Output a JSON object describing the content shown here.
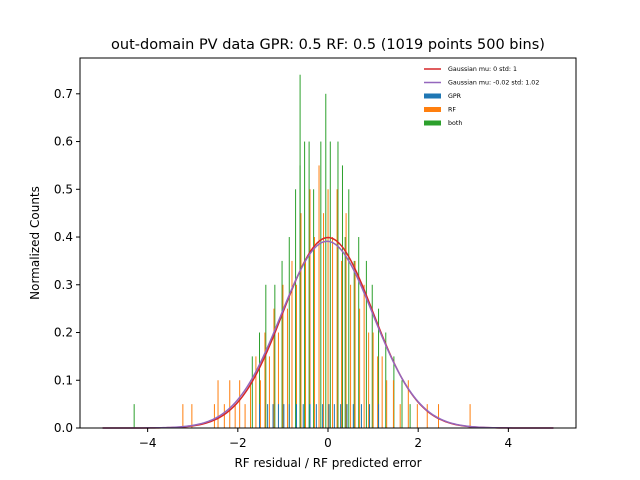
{
  "chart_data": {
    "type": "histogram",
    "title": "out-domain PV data GPR: 0.5 RF: 0.5 (1019 points 500 bins)",
    "xlabel": "RF residual / RF predicted error",
    "ylabel": "Normalized Counts",
    "xlim": [
      -5.5,
      5.5
    ],
    "ylim": [
      0,
      0.775
    ],
    "xticks": [
      -4,
      -2,
      0,
      2,
      4
    ],
    "yticks": [
      0.0,
      0.1,
      0.2,
      0.3,
      0.4,
      0.5,
      0.6,
      0.7
    ],
    "ytick_labels": [
      "0.0",
      "0.1",
      "0.2",
      "0.3",
      "0.4",
      "0.5",
      "0.6",
      "0.7"
    ],
    "legend_position": "top-right",
    "series": [
      {
        "name": "Gaussian mu: 0 std: 1",
        "kind": "line",
        "color": "#d62728",
        "mu": 0,
        "std": 1,
        "x_range": [
          -5,
          5
        ]
      },
      {
        "name": "Gaussian mu: -0.02 std: 1.02",
        "kind": "line",
        "color": "#9467bd",
        "mu": -0.02,
        "std": 1.02,
        "x_range": [
          -5,
          5
        ]
      },
      {
        "name": "GPR",
        "kind": "hist",
        "color": "#1f77b4",
        "bins": [
          [
            -1.52,
            0.05
          ],
          [
            -1.34,
            0.05
          ],
          [
            -1.22,
            0.05
          ],
          [
            -1.1,
            0.05
          ],
          [
            -0.98,
            0.05
          ],
          [
            -0.86,
            0.05
          ],
          [
            -0.7,
            0.05
          ],
          [
            -0.55,
            0.05
          ],
          [
            -0.4,
            0.05
          ],
          [
            -0.26,
            0.05
          ],
          [
            -0.12,
            0.05
          ],
          [
            0.02,
            0.05
          ],
          [
            0.14,
            0.05
          ],
          [
            0.28,
            0.05
          ],
          [
            0.42,
            0.05
          ],
          [
            0.56,
            0.05
          ],
          [
            0.74,
            0.05
          ],
          [
            0.92,
            0.05
          ],
          [
            1.12,
            0.05
          ]
        ]
      },
      {
        "name": "RF",
        "kind": "hist",
        "color": "#ff7f0e",
        "bins": [
          [
            -3.22,
            0.05
          ],
          [
            -3.02,
            0.05
          ],
          [
            -2.52,
            0.05
          ],
          [
            -2.44,
            0.1
          ],
          [
            -2.3,
            0.05
          ],
          [
            -2.18,
            0.1
          ],
          [
            -2.06,
            0.05
          ],
          [
            -1.96,
            0.1
          ],
          [
            -1.84,
            0.05
          ],
          [
            -1.72,
            0.1
          ],
          [
            -1.6,
            0.15
          ],
          [
            -1.5,
            0.1
          ],
          [
            -1.4,
            0.2
          ],
          [
            -1.3,
            0.15
          ],
          [
            -1.2,
            0.25
          ],
          [
            -1.1,
            0.2
          ],
          [
            -1.0,
            0.3
          ],
          [
            -0.9,
            0.25
          ],
          [
            -0.8,
            0.35
          ],
          [
            -0.7,
            0.3
          ],
          [
            -0.6,
            0.45
          ],
          [
            -0.5,
            0.35
          ],
          [
            -0.4,
            0.5
          ],
          [
            -0.3,
            0.4
          ],
          [
            -0.2,
            0.55
          ],
          [
            -0.1,
            0.45
          ],
          [
            0.0,
            0.5
          ],
          [
            0.1,
            0.4
          ],
          [
            0.2,
            0.5
          ],
          [
            0.3,
            0.35
          ],
          [
            0.4,
            0.45
          ],
          [
            0.5,
            0.3
          ],
          [
            0.6,
            0.35
          ],
          [
            0.7,
            0.25
          ],
          [
            0.8,
            0.3
          ],
          [
            0.9,
            0.2
          ],
          [
            1.0,
            0.2
          ],
          [
            1.1,
            0.15
          ],
          [
            1.2,
            0.15
          ],
          [
            1.3,
            0.1
          ],
          [
            1.45,
            0.1
          ],
          [
            1.6,
            0.05
          ],
          [
            1.78,
            0.1
          ],
          [
            1.98,
            0.05
          ],
          [
            2.2,
            0.05
          ],
          [
            2.45,
            0.05
          ],
          [
            3.15,
            0.05
          ]
        ]
      },
      {
        "name": "both",
        "kind": "hist",
        "color": "#2ca02c",
        "bins": [
          [
            -4.3,
            0.05
          ],
          [
            -1.68,
            0.15
          ],
          [
            -1.52,
            0.2
          ],
          [
            -1.38,
            0.3
          ],
          [
            -1.18,
            0.3
          ],
          [
            -1.02,
            0.35
          ],
          [
            -0.86,
            0.4
          ],
          [
            -0.72,
            0.5
          ],
          [
            -0.62,
            0.55
          ],
          [
            -0.52,
            0.6
          ],
          [
            -0.42,
            0.6
          ],
          [
            -0.62,
            0.74
          ],
          [
            -0.32,
            0.5
          ],
          [
            -0.16,
            0.6
          ],
          [
            -0.05,
            0.7
          ],
          [
            0.05,
            0.6
          ],
          [
            0.22,
            0.6
          ],
          [
            0.32,
            0.55
          ],
          [
            0.38,
            0.4
          ],
          [
            0.46,
            0.5
          ],
          [
            0.58,
            0.35
          ],
          [
            0.68,
            0.4
          ],
          [
            0.85,
            0.35
          ],
          [
            0.98,
            0.3
          ],
          [
            1.12,
            0.25
          ],
          [
            1.28,
            0.2
          ],
          [
            1.46,
            0.15
          ],
          [
            1.64,
            0.1
          ],
          [
            1.82,
            0.05
          ]
        ]
      }
    ]
  }
}
